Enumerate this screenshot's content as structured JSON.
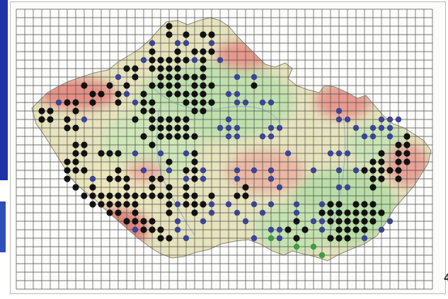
{
  "map": {
    "page_number": "4",
    "country_outline": "Czech Republic",
    "legend_colors": {
      "black": "#111111",
      "blue": "#3c4494",
      "green": "#3f9a45"
    },
    "relief_colors": {
      "lowland": "#c4e1b2",
      "upland": "#e8e1b6",
      "mountain": "#df8f86"
    },
    "grid_color": "#4a4a4a",
    "side_accent_color": "#1d33a8"
  }
}
